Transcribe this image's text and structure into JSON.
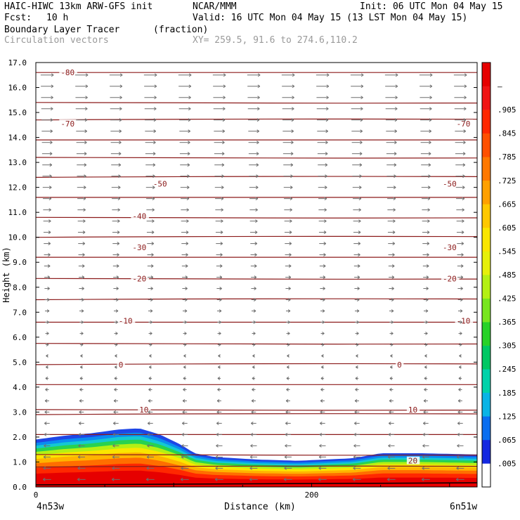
{
  "header": {
    "model": "HAIC-HIWC 13km ARW-GFS init",
    "org": "NCAR/MMM",
    "init": "Init: 06 UTC Mon 04 May 15",
    "fcst_label": "Fcst:",
    "fcst_value": "10 h",
    "valid": "Valid: 16 UTC Mon 04 May 15 (13 LST Mon 04 May 15)",
    "field1": "Boundary Layer Tracer",
    "field1_units": "(fraction)",
    "field2": "Circulation vectors",
    "xy": "XY= 259.5, 91.6 to 274.6,110.2"
  },
  "chart_data": {
    "type": "heatmap",
    "ylabel": "Height (km)",
    "xlabel": "Distance (km)",
    "ylim": [
      0,
      17
    ],
    "xlim": [
      0,
      320
    ],
    "yticks": [
      "0.0",
      "1.0",
      "2.0",
      "3.0",
      "4.0",
      "5.0",
      "6.0",
      "7.0",
      "8.0",
      "9.0",
      "10.0",
      "11.0",
      "12.0",
      "13.0",
      "14.0",
      "15.0",
      "16.0",
      "17.0"
    ],
    "xticks": [
      {
        "value": 0,
        "label": "0"
      },
      {
        "value": 200,
        "label": "200"
      }
    ],
    "endpoints": {
      "left": "4n53w",
      "right": "6n51w"
    },
    "colorbar": {
      "labels": [
        ".005",
        ".065",
        ".125",
        ".185",
        ".245",
        ".305",
        ".365",
        ".425",
        ".485",
        ".545",
        ".605",
        ".665",
        ".725",
        ".785",
        ".845",
        ".905",
        "–"
      ],
      "colors": [
        "#ffffff",
        "#1428e0",
        "#0a6ef0",
        "#0ab4e6",
        "#00d2aa",
        "#00c864",
        "#28d228",
        "#78e61e",
        "#b4f014",
        "#e6f00a",
        "#fae600",
        "#ffc800",
        "#ffa000",
        "#ff7800",
        "#ff5000",
        "#ff2800",
        "#f01414",
        "#e60000"
      ]
    },
    "tracer_top_km": [
      {
        "x": 0,
        "z": 1.9
      },
      {
        "x": 20,
        "z": 2.05
      },
      {
        "x": 40,
        "z": 2.15
      },
      {
        "x": 60,
        "z": 2.3
      },
      {
        "x": 75,
        "z": 2.35
      },
      {
        "x": 90,
        "z": 2.1
      },
      {
        "x": 105,
        "z": 1.7
      },
      {
        "x": 115,
        "z": 1.35
      },
      {
        "x": 130,
        "z": 1.2
      },
      {
        "x": 160,
        "z": 1.1
      },
      {
        "x": 190,
        "z": 1.05
      },
      {
        "x": 230,
        "z": 1.15
      },
      {
        "x": 250,
        "z": 1.35
      },
      {
        "x": 280,
        "z": 1.35
      },
      {
        "x": 320,
        "z": 1.3
      }
    ],
    "temperature_contours": [
      {
        "value": 20,
        "labels": [
          {
            "text": "20",
            "x": 270
          }
        ]
      },
      {
        "value": 10,
        "labels": [
          {
            "text": "10",
            "x": 75
          },
          {
            "text": "10",
            "x": 270
          }
        ]
      },
      {
        "value": 0,
        "labels": [
          {
            "text": "0",
            "x": 60
          },
          {
            "text": "0",
            "x": 262
          }
        ]
      },
      {
        "value": -10,
        "labels": [
          {
            "text": "-10",
            "x": 60
          },
          {
            "text": "-10",
            "x": 305
          }
        ]
      },
      {
        "value": -20,
        "labels": [
          {
            "text": "-20",
            "x": 70
          },
          {
            "text": "-20",
            "x": 295
          }
        ]
      },
      {
        "value": -30,
        "labels": [
          {
            "text": "-30",
            "x": 70
          },
          {
            "text": "-30",
            "x": 295
          }
        ]
      },
      {
        "value": -40,
        "labels": [
          {
            "text": "-40",
            "x": 70
          }
        ]
      },
      {
        "value": -50,
        "labels": [
          {
            "text": "-50",
            "x": 85
          },
          {
            "text": "-50",
            "x": 295
          }
        ]
      },
      {
        "value": -70,
        "labels": [
          {
            "text": "-70",
            "x": 18
          },
          {
            "text": "-70",
            "x": 305
          }
        ]
      },
      {
        "value": -80,
        "labels": [
          {
            "text": "-80",
            "x": 18
          }
        ]
      }
    ],
    "contour_levels_km": [
      0.8,
      1.3,
      2.1,
      2.9,
      3.1,
      4.1,
      4.9,
      5.75,
      6.6,
      7.5,
      8.35,
      9.2,
      10.0,
      10.8,
      11.6,
      12.4,
      13.2,
      13.9,
      14.7,
      15.4,
      16.6
    ],
    "wind": {
      "low_level_direction": "easterly",
      "upper_level_direction": "westerly",
      "reversal_height_km": 5.5
    }
  }
}
